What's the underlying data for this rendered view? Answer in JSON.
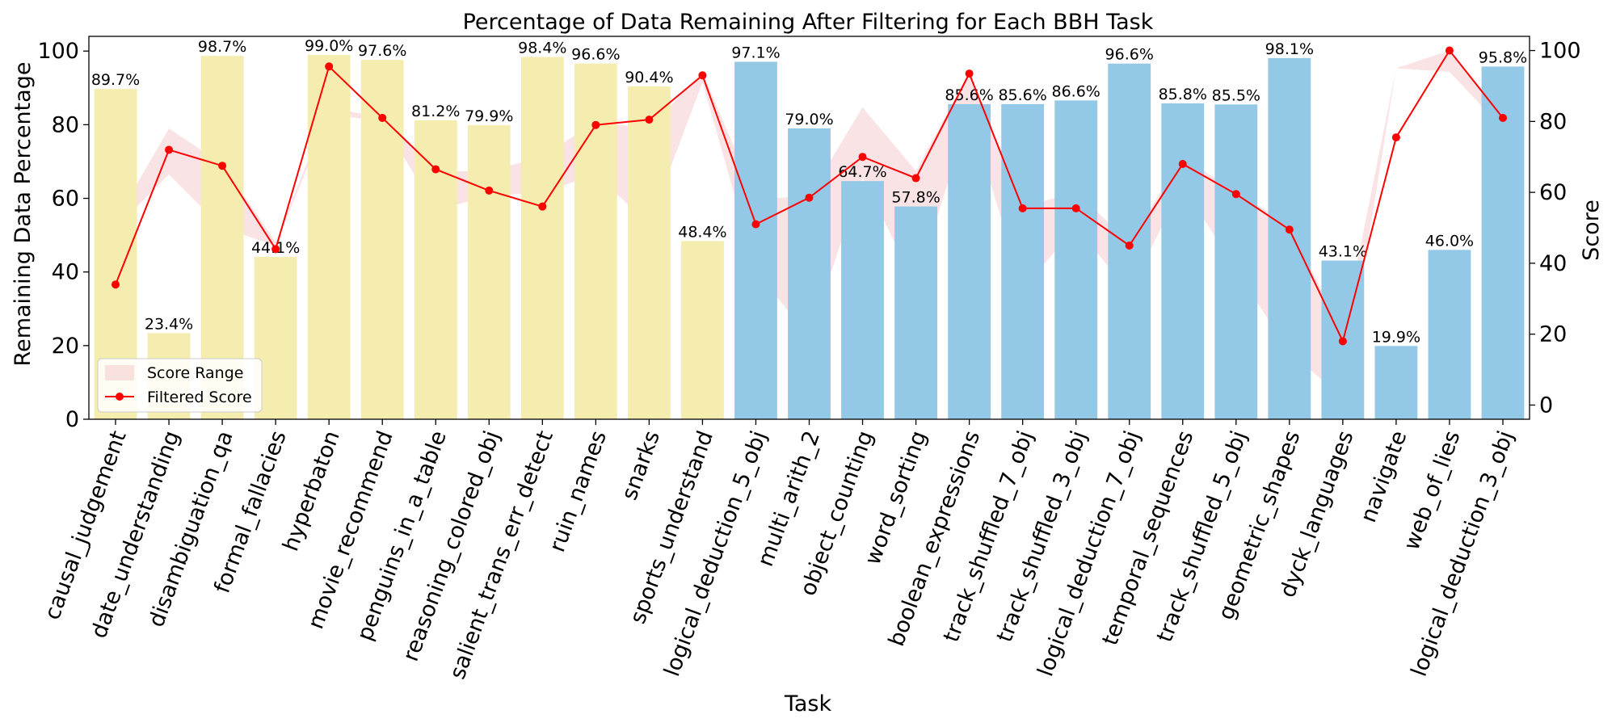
{
  "chart_data": {
    "type": "bar",
    "title": "Percentage of Data Remaining After Filtering for Each BBH Task",
    "xlabel": "Task",
    "ylabel": "Remaining Data Percentage",
    "y2label": "Score",
    "ylim": [
      0,
      104
    ],
    "y2lim": [
      -4,
      104
    ],
    "yticks": [
      0,
      20,
      40,
      60,
      80,
      100
    ],
    "y2ticks": [
      0,
      20,
      40,
      60,
      80,
      100
    ],
    "grid": false,
    "legend_position": "lower-left",
    "colors": {
      "group_a_bar": "#f5ecb0",
      "group_b_bar": "#93c9e6",
      "score_line": "#ff0000",
      "score_range": "#f4c2c6"
    },
    "categories": [
      "causal_judgement",
      "date_understanding",
      "disambiguation_qa",
      "formal_fallacies",
      "hyperbaton",
      "movie_recommend",
      "penguins_in_a_table",
      "reasoning_colored_obj",
      "salient_trans_err_detect",
      "ruin_names",
      "snarks",
      "sports_understand",
      "logical_deduction_5_obj",
      "multi_arith_2",
      "object_counting",
      "word_sorting",
      "boolean_expressions",
      "track_shuffled_7_obj",
      "track_shuffled_3_obj",
      "logical_deduction_7_obj",
      "temporal_sequences",
      "track_shuffled_5_obj",
      "geometric_shapes",
      "dyck_languages",
      "navigate",
      "web_of_lies",
      "logical_deduction_3_obj"
    ],
    "bar_values": [
      89.7,
      23.4,
      98.7,
      44.1,
      99.0,
      97.6,
      81.2,
      79.9,
      98.4,
      96.6,
      90.4,
      48.4,
      97.1,
      79.0,
      64.7,
      57.8,
      85.6,
      85.6,
      86.6,
      96.6,
      85.8,
      85.5,
      98.1,
      43.1,
      19.9,
      46.0,
      95.8
    ],
    "bar_labels": [
      "89.7%",
      "23.4%",
      "98.7%",
      "44.1%",
      "99.0%",
      "97.6%",
      "81.2%",
      "79.9%",
      "98.4%",
      "96.6%",
      "90.4%",
      "48.4%",
      "97.1%",
      "79.0%",
      "64.7%",
      "57.8%",
      "85.6%",
      "85.6%",
      "86.6%",
      "96.6%",
      "85.8%",
      "85.5%",
      "98.1%",
      "43.1%",
      "19.9%",
      "46.0%",
      "95.8%"
    ],
    "bar_groups": [
      "a",
      "a",
      "a",
      "a",
      "a",
      "a",
      "a",
      "a",
      "a",
      "a",
      "a",
      "a",
      "b",
      "b",
      "b",
      "b",
      "b",
      "b",
      "b",
      "b",
      "b",
      "b",
      "b",
      "b",
      "b",
      "b",
      "b"
    ],
    "series": [
      {
        "name": "Filtered Score",
        "axis": "right",
        "values": [
          34,
          72,
          67.5,
          44,
          95.5,
          81,
          66.5,
          60.5,
          56,
          79,
          80.5,
          93,
          51,
          58.5,
          70,
          64,
          93.5,
          55.5,
          55.5,
          45,
          68,
          59.5,
          49.5,
          18,
          75.5,
          100,
          81
        ]
      },
      {
        "name": "Score Range",
        "axis": "right",
        "low": [
          50,
          65,
          50,
          45,
          82,
          80,
          55,
          59,
          60,
          65,
          51,
          91,
          38,
          19,
          64,
          34,
          82,
          33,
          50,
          32,
          62,
          38,
          15,
          2,
          95,
          94,
          78
        ],
        "high": [
          52,
          78,
          68,
          46,
          84,
          81,
          66,
          66,
          70,
          80,
          78,
          94,
          58,
          59,
          84,
          66,
          94,
          56,
          60,
          46,
          70,
          60,
          51,
          20,
          95,
          100,
          82
        ]
      }
    ],
    "legend": [
      "Score Range",
      "Filtered Score"
    ]
  }
}
